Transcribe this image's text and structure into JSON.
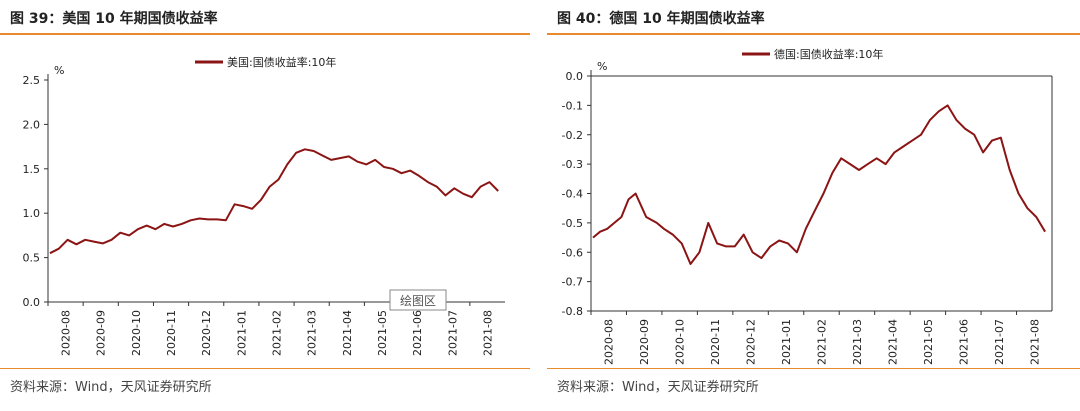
{
  "panels": [
    {
      "figure_title": "图 39：美国 10 年期国债收益率",
      "source": "资料来源：Wind，天风证券研究所",
      "watermark": "绘图区"
    },
    {
      "figure_title": "图 40：德国 10 年期国债收益率",
      "source": "资料来源：Wind，天风证券研究所"
    }
  ],
  "chart_data": [
    {
      "type": "line",
      "title": "",
      "ylabel": "%",
      "ylim": [
        0.0,
        2.5
      ],
      "yticks": [
        "0.0",
        "0.5",
        "1.0",
        "1.5",
        "2.0",
        "2.5"
      ],
      "xticks": [
        "2020-08",
        "2020-09",
        "2020-10",
        "2020-11",
        "2020-12",
        "2021-01",
        "2021-02",
        "2021-03",
        "2021-04",
        "2021-05",
        "2021-06",
        "2021-07",
        "2021-08"
      ],
      "legend_position": "top-center",
      "series": [
        {
          "name": "美国:国债收益率:10年",
          "color": "#8b1414",
          "x": [
            0,
            0.25,
            0.5,
            0.75,
            1,
            1.25,
            1.5,
            1.75,
            2,
            2.25,
            2.5,
            2.75,
            3,
            3.25,
            3.5,
            3.75,
            4,
            4.25,
            4.5,
            4.75,
            5,
            5.25,
            5.5,
            5.75,
            6,
            6.25,
            6.5,
            6.75,
            7,
            7.25,
            7.5,
            7.75,
            8,
            8.25,
            8.5,
            8.75,
            9,
            9.25,
            9.5,
            9.75,
            10,
            10.25,
            10.5,
            10.75,
            11,
            11.25,
            11.5,
            11.75,
            12,
            12.25,
            12.5,
            12.75
          ],
          "values": [
            0.55,
            0.6,
            0.7,
            0.65,
            0.7,
            0.68,
            0.66,
            0.7,
            0.78,
            0.75,
            0.82,
            0.86,
            0.82,
            0.88,
            0.85,
            0.88,
            0.92,
            0.94,
            0.93,
            0.93,
            0.92,
            1.1,
            1.08,
            1.05,
            1.15,
            1.3,
            1.38,
            1.55,
            1.68,
            1.72,
            1.7,
            1.65,
            1.6,
            1.62,
            1.64,
            1.58,
            1.55,
            1.6,
            1.52,
            1.5,
            1.45,
            1.48,
            1.42,
            1.35,
            1.3,
            1.2,
            1.28,
            1.22,
            1.18,
            1.3,
            1.35,
            1.25
          ]
        }
      ]
    },
    {
      "type": "line",
      "title": "",
      "ylabel": "%",
      "ylim": [
        -0.8,
        0.0
      ],
      "yticks": [
        "0.0",
        "-0.1",
        "-0.2",
        "-0.3",
        "-0.4",
        "-0.5",
        "-0.6",
        "-0.7",
        "-0.8"
      ],
      "xticks": [
        "2020-08",
        "2020-09",
        "2020-10",
        "2020-11",
        "2020-12",
        "2021-01",
        "2021-02",
        "2021-03",
        "2021-04",
        "2021-05",
        "2021-06",
        "2021-07",
        "2021-08"
      ],
      "legend_position": "top-center",
      "series": [
        {
          "name": "德国:国债收益率:10年",
          "color": "#8b1414",
          "x": [
            0,
            0.2,
            0.4,
            0.6,
            0.8,
            1.0,
            1.2,
            1.5,
            1.8,
            2.0,
            2.25,
            2.5,
            2.75,
            3.0,
            3.25,
            3.5,
            3.75,
            4.0,
            4.25,
            4.5,
            4.75,
            5.0,
            5.25,
            5.5,
            5.75,
            6.0,
            6.25,
            6.5,
            6.75,
            7.0,
            7.25,
            7.5,
            7.75,
            8.0,
            8.25,
            8.5,
            8.75,
            9.0,
            9.25,
            9.5,
            9.75,
            10.0,
            10.25,
            10.5,
            10.75,
            11.0,
            11.25,
            11.5,
            11.75,
            12.0,
            12.25,
            12.5,
            12.75
          ],
          "values": [
            -0.55,
            -0.53,
            -0.52,
            -0.5,
            -0.48,
            -0.42,
            -0.4,
            -0.48,
            -0.5,
            -0.52,
            -0.54,
            -0.57,
            -0.64,
            -0.6,
            -0.5,
            -0.57,
            -0.58,
            -0.58,
            -0.54,
            -0.6,
            -0.62,
            -0.58,
            -0.56,
            -0.57,
            -0.6,
            -0.52,
            -0.46,
            -0.4,
            -0.33,
            -0.28,
            -0.3,
            -0.32,
            -0.3,
            -0.28,
            -0.3,
            -0.26,
            -0.24,
            -0.22,
            -0.2,
            -0.15,
            -0.12,
            -0.1,
            -0.15,
            -0.18,
            -0.2,
            -0.26,
            -0.22,
            -0.21,
            -0.32,
            -0.4,
            -0.45,
            -0.48,
            -0.53
          ]
        }
      ]
    }
  ]
}
